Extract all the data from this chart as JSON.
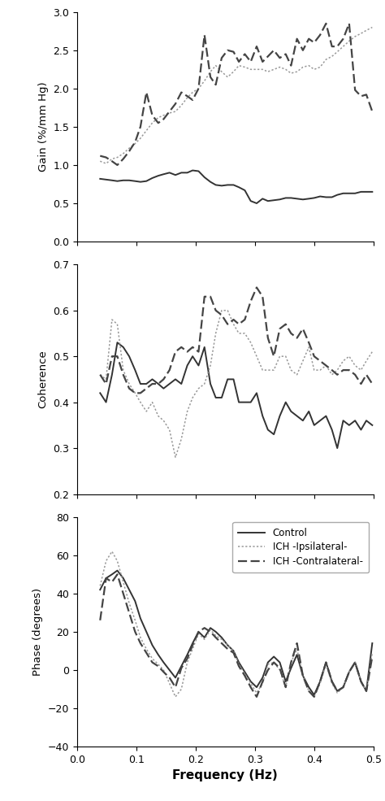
{
  "freq": [
    0.039,
    0.049,
    0.059,
    0.068,
    0.078,
    0.088,
    0.098,
    0.107,
    0.117,
    0.127,
    0.137,
    0.146,
    0.156,
    0.166,
    0.176,
    0.186,
    0.195,
    0.205,
    0.215,
    0.225,
    0.234,
    0.244,
    0.254,
    0.264,
    0.273,
    0.283,
    0.293,
    0.303,
    0.313,
    0.322,
    0.332,
    0.342,
    0.352,
    0.361,
    0.371,
    0.381,
    0.391,
    0.4,
    0.41,
    0.42,
    0.43,
    0.439,
    0.449,
    0.459,
    0.469,
    0.479,
    0.488,
    0.498
  ],
  "gain_control": [
    0.82,
    0.81,
    0.8,
    0.79,
    0.8,
    0.8,
    0.79,
    0.78,
    0.79,
    0.83,
    0.86,
    0.88,
    0.9,
    0.87,
    0.9,
    0.9,
    0.93,
    0.92,
    0.84,
    0.78,
    0.74,
    0.73,
    0.74,
    0.74,
    0.71,
    0.67,
    0.53,
    0.5,
    0.56,
    0.53,
    0.54,
    0.55,
    0.57,
    0.57,
    0.56,
    0.55,
    0.56,
    0.57,
    0.59,
    0.58,
    0.58,
    0.61,
    0.63,
    0.63,
    0.63,
    0.65,
    0.65,
    0.65
  ],
  "gain_ipsi": [
    1.05,
    1.02,
    1.08,
    1.1,
    1.15,
    1.22,
    1.28,
    1.35,
    1.45,
    1.55,
    1.62,
    1.65,
    1.68,
    1.7,
    1.78,
    1.88,
    1.95,
    2.0,
    2.1,
    2.22,
    2.3,
    2.22,
    2.15,
    2.22,
    2.3,
    2.28,
    2.25,
    2.25,
    2.25,
    2.22,
    2.25,
    2.28,
    2.25,
    2.2,
    2.22,
    2.28,
    2.3,
    2.25,
    2.28,
    2.38,
    2.42,
    2.48,
    2.55,
    2.62,
    2.68,
    2.72,
    2.76,
    2.8
  ],
  "gain_contra": [
    1.12,
    1.1,
    1.05,
    1.0,
    1.08,
    1.18,
    1.3,
    1.5,
    1.95,
    1.65,
    1.55,
    1.6,
    1.7,
    1.8,
    1.95,
    1.9,
    1.85,
    2.0,
    2.7,
    2.15,
    2.05,
    2.4,
    2.5,
    2.48,
    2.35,
    2.45,
    2.35,
    2.55,
    2.35,
    2.42,
    2.5,
    2.4,
    2.45,
    2.3,
    2.65,
    2.5,
    2.65,
    2.6,
    2.7,
    2.85,
    2.55,
    2.55,
    2.65,
    2.85,
    1.98,
    1.9,
    1.92,
    1.7
  ],
  "coh_control": [
    0.42,
    0.4,
    0.46,
    0.53,
    0.52,
    0.5,
    0.47,
    0.44,
    0.44,
    0.45,
    0.44,
    0.43,
    0.44,
    0.45,
    0.44,
    0.48,
    0.5,
    0.48,
    0.52,
    0.44,
    0.41,
    0.41,
    0.45,
    0.45,
    0.4,
    0.4,
    0.4,
    0.42,
    0.37,
    0.34,
    0.33,
    0.37,
    0.4,
    0.38,
    0.37,
    0.36,
    0.38,
    0.35,
    0.36,
    0.37,
    0.34,
    0.3,
    0.36,
    0.35,
    0.36,
    0.34,
    0.36,
    0.35
  ],
  "coh_ipsi": [
    0.46,
    0.45,
    0.58,
    0.57,
    0.47,
    0.44,
    0.42,
    0.4,
    0.38,
    0.4,
    0.37,
    0.36,
    0.34,
    0.28,
    0.32,
    0.38,
    0.41,
    0.43,
    0.44,
    0.48,
    0.55,
    0.6,
    0.6,
    0.57,
    0.55,
    0.55,
    0.53,
    0.5,
    0.47,
    0.47,
    0.47,
    0.5,
    0.5,
    0.47,
    0.46,
    0.49,
    0.52,
    0.47,
    0.47,
    0.48,
    0.46,
    0.47,
    0.49,
    0.5,
    0.48,
    0.47,
    0.49,
    0.51
  ],
  "coh_contra": [
    0.46,
    0.44,
    0.5,
    0.5,
    0.46,
    0.43,
    0.42,
    0.42,
    0.43,
    0.44,
    0.44,
    0.45,
    0.47,
    0.51,
    0.52,
    0.51,
    0.52,
    0.51,
    0.63,
    0.63,
    0.6,
    0.59,
    0.57,
    0.58,
    0.57,
    0.58,
    0.62,
    0.65,
    0.63,
    0.54,
    0.5,
    0.56,
    0.57,
    0.55,
    0.54,
    0.56,
    0.53,
    0.5,
    0.49,
    0.48,
    0.47,
    0.46,
    0.47,
    0.47,
    0.46,
    0.44,
    0.46,
    0.44
  ],
  "phase_control": [
    42,
    48,
    50,
    52,
    48,
    42,
    36,
    27,
    20,
    13,
    8,
    4,
    0,
    -4,
    2,
    8,
    14,
    20,
    17,
    22,
    20,
    17,
    13,
    10,
    4,
    -1,
    -6,
    -9,
    -4,
    4,
    7,
    4,
    -6,
    1,
    8,
    -3,
    -9,
    -13,
    -6,
    4,
    -6,
    -11,
    -9,
    -1,
    4,
    -6,
    -11,
    14
  ],
  "phase_ipsi": [
    44,
    57,
    62,
    57,
    46,
    35,
    26,
    17,
    11,
    6,
    3,
    0,
    -7,
    -14,
    -10,
    4,
    11,
    19,
    16,
    21,
    18,
    16,
    13,
    10,
    3,
    -2,
    -7,
    -12,
    -7,
    3,
    4,
    0,
    -9,
    4,
    11,
    -3,
    -11,
    -14,
    -7,
    3,
    -7,
    -12,
    -9,
    -1,
    4,
    -6,
    -11,
    9
  ],
  "phase_contra": [
    26,
    48,
    46,
    50,
    40,
    30,
    20,
    14,
    9,
    4,
    2,
    -1,
    -4,
    -9,
    1,
    6,
    13,
    20,
    22,
    20,
    17,
    14,
    11,
    9,
    2,
    -3,
    -9,
    -14,
    -6,
    0,
    4,
    1,
    -9,
    4,
    14,
    -3,
    -11,
    -14,
    -6,
    4,
    -6,
    -11,
    -9,
    -1,
    4,
    -6,
    -11,
    7
  ],
  "color_control": "#333333",
  "color_ipsi": "#999999",
  "color_contra": "#444444",
  "gain_ylim": [
    0.0,
    3.0
  ],
  "gain_yticks": [
    0.0,
    0.5,
    1.0,
    1.5,
    2.0,
    2.5,
    3.0
  ],
  "gain_ylabel": "Gain (%/mm Hg)",
  "coh_ylim": [
    0.2,
    0.7
  ],
  "coh_yticks": [
    0.2,
    0.3,
    0.4,
    0.5,
    0.6,
    0.7
  ],
  "coh_ylabel": "Coherence",
  "phase_ylim": [
    -40,
    80
  ],
  "phase_yticks": [
    -40,
    -20,
    0,
    20,
    40,
    60,
    80
  ],
  "phase_ylabel": "Phase (degrees)",
  "xlim": [
    0.0,
    0.5
  ],
  "xticks": [
    0.0,
    0.1,
    0.2,
    0.3,
    0.4,
    0.5
  ],
  "xlabel": "Frequency (Hz)",
  "legend_labels": [
    "Control",
    "ICH -Ipsilateral-",
    "ICH -Contralateral-"
  ]
}
